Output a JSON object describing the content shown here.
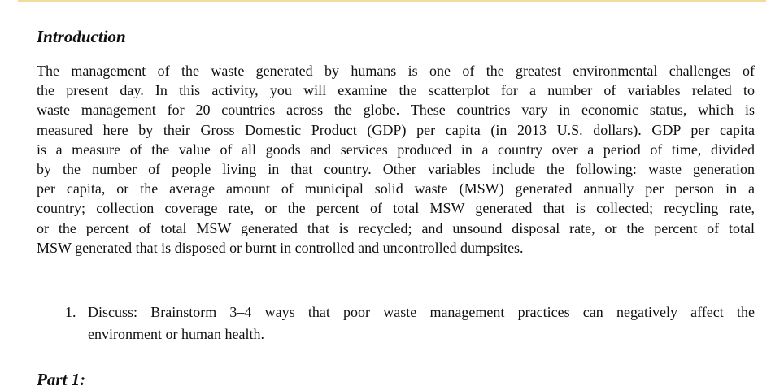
{
  "heading": "Introduction",
  "paragraph_lines": [
    "The management of the waste generated by humans is one of the greatest environmental challenges of",
    "the present day. In this activity, you will examine the scatterplot for a number of variables related to",
    "waste management for 20 countries across the globe. These countries vary in economic status, which is",
    "measured here by their Gross Domestic Product (GDP) per capita (in 2013 U.S. dollars). GDP per capita",
    "is a measure of the value of all goods and services produced in a country over a period of time, divided",
    "by the number of people living in that country. Other variables include the following: waste generation",
    "per capita, or the average amount of municipal solid waste (MSW) generated annually per person in a",
    "country; collection coverage rate, or the percent of total MSW generated that is collected; recycling rate,",
    "or the percent of total MSW generated that is recycled; and unsound disposal rate, or the percent of total",
    "MSW generated that is disposed or burnt in controlled and uncontrolled dumpsites."
  ],
  "list": [
    {
      "number": "1.",
      "lines": [
        "Discuss: Brainstorm 3–4 ways that poor waste management practices can negatively affect the",
        "environment or human health."
      ]
    }
  ],
  "part_heading": "Part 1:",
  "colors": {
    "top_rule": "#f1dc9c"
  }
}
